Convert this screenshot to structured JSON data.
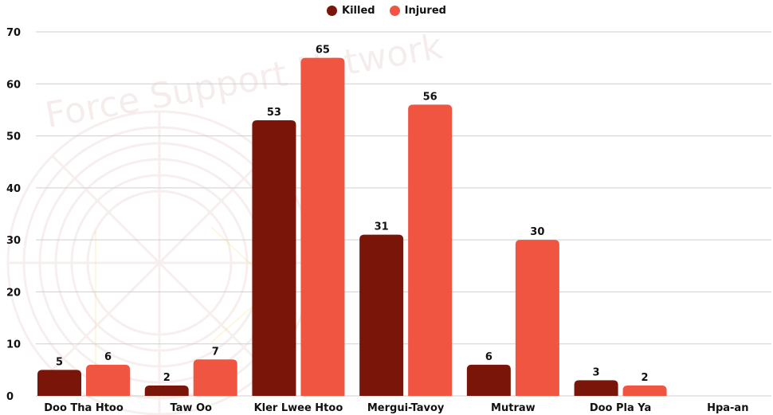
{
  "chart_data": {
    "type": "bar",
    "categories": [
      "Doo Tha Htoo",
      "Taw Oo",
      "Kler Lwee Htoo",
      "Mergui-Tavoy",
      "Mutraw",
      "Doo Pla Ya",
      "Hpa-an"
    ],
    "series": [
      {
        "name": "Killed",
        "color": "#7a1609",
        "values": [
          5,
          2,
          53,
          31,
          6,
          3,
          null
        ]
      },
      {
        "name": "Injured",
        "color": "#f05542",
        "values": [
          6,
          7,
          65,
          56,
          30,
          2,
          null
        ]
      }
    ],
    "yticks": [
      0,
      10,
      20,
      30,
      40,
      50,
      60,
      70
    ],
    "ylim": [
      0,
      70
    ],
    "grid": true,
    "legend_position": "top-center",
    "watermark_text": "Force Support Network"
  }
}
